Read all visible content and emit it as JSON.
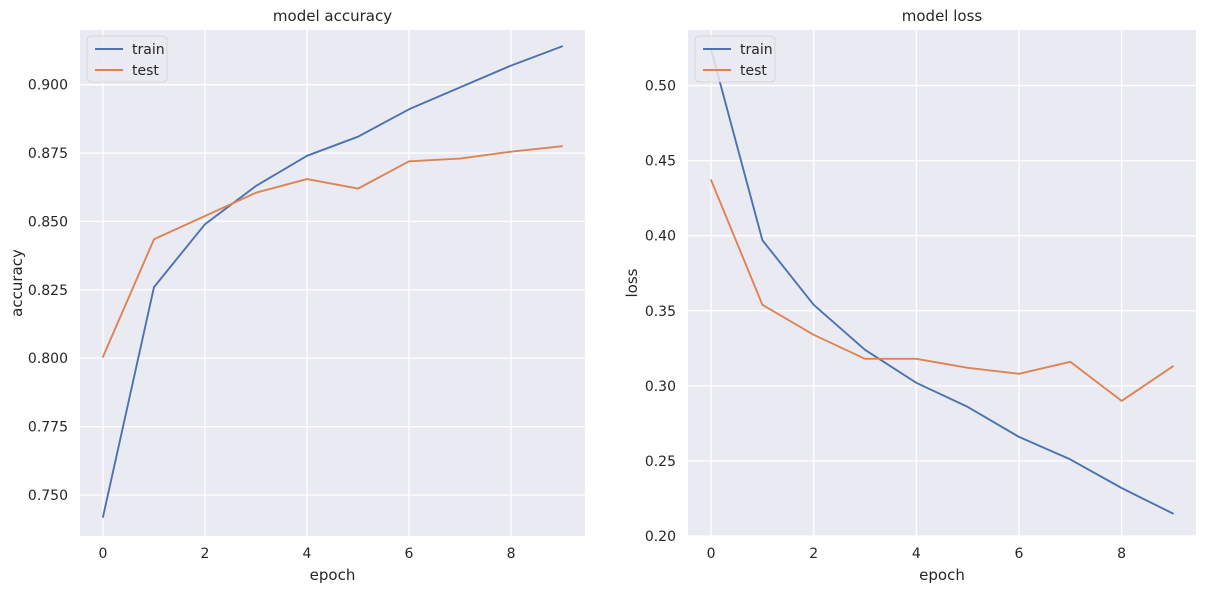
{
  "figure": {
    "background": "#ffffff",
    "plot_background": "#eaeaf2",
    "grid_color": "#ffffff",
    "text_color": "#262626"
  },
  "chart_data": [
    {
      "type": "line",
      "title": "model accuracy",
      "xlabel": "epoch",
      "ylabel": "accuracy",
      "x": [
        0,
        1,
        2,
        3,
        4,
        5,
        6,
        7,
        8,
        9
      ],
      "xlim": [
        -0.45,
        9.45
      ],
      "ylim": [
        0.735,
        0.92
      ],
      "xticks": [
        0,
        2,
        4,
        6,
        8
      ],
      "xtick_labels": [
        "0",
        "2",
        "4",
        "6",
        "8"
      ],
      "yticks": [
        0.75,
        0.775,
        0.8,
        0.825,
        0.85,
        0.875,
        0.9
      ],
      "ytick_labels": [
        "0.750",
        "0.775",
        "0.800",
        "0.825",
        "0.850",
        "0.875",
        "0.900"
      ],
      "grid": true,
      "legend_position": "top-left",
      "series": [
        {
          "name": "train",
          "color": "#4c72b0",
          "values": [
            0.742,
            0.826,
            0.849,
            0.863,
            0.874,
            0.881,
            0.891,
            0.899,
            0.907,
            0.914
          ]
        },
        {
          "name": "test",
          "color": "#dd8452",
          "values": [
            0.8005,
            0.8435,
            0.852,
            0.8605,
            0.8655,
            0.862,
            0.872,
            0.873,
            0.8755,
            0.8775
          ]
        }
      ]
    },
    {
      "type": "line",
      "title": "model loss",
      "xlabel": "epoch",
      "ylabel": "loss",
      "x": [
        0,
        1,
        2,
        3,
        4,
        5,
        6,
        7,
        8,
        9
      ],
      "xlim": [
        -0.45,
        9.45
      ],
      "ylim": [
        0.2,
        0.537
      ],
      "xticks": [
        0,
        2,
        4,
        6,
        8
      ],
      "xtick_labels": [
        "0",
        "2",
        "4",
        "6",
        "8"
      ],
      "yticks": [
        0.2,
        0.25,
        0.3,
        0.35,
        0.4,
        0.45,
        0.5
      ],
      "ytick_labels": [
        "0.20",
        "0.25",
        "0.30",
        "0.35",
        "0.40",
        "0.45",
        "0.50"
      ],
      "grid": true,
      "legend_position": "top-left",
      "series": [
        {
          "name": "train",
          "color": "#4c72b0",
          "values": [
            0.524,
            0.397,
            0.354,
            0.324,
            0.302,
            0.286,
            0.266,
            0.251,
            0.232,
            0.215
          ]
        },
        {
          "name": "test",
          "color": "#dd8452",
          "values": [
            0.437,
            0.354,
            0.334,
            0.318,
            0.318,
            0.312,
            0.308,
            0.316,
            0.29,
            0.313
          ]
        }
      ]
    }
  ]
}
